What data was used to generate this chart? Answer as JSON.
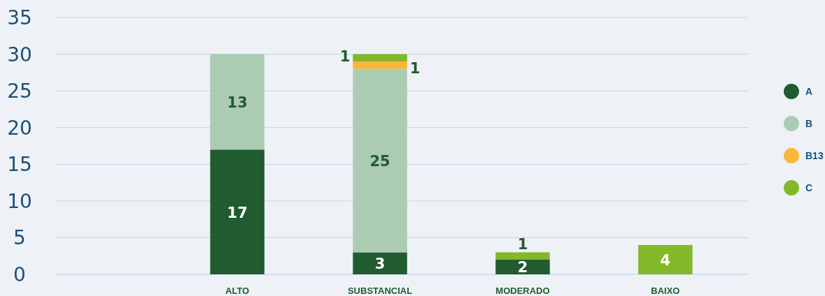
{
  "chart_data": {
    "type": "bar",
    "stacked": true,
    "categories": [
      "ALTO",
      "SUBSTANCIAL",
      "MODERADO",
      "BAIXO"
    ],
    "series": [
      {
        "name": "A",
        "color": "#215b30",
        "values": [
          17,
          3,
          2,
          null
        ]
      },
      {
        "name": "B",
        "color": "#accbb3",
        "values": [
          13,
          25,
          null,
          null
        ]
      },
      {
        "name": "B13",
        "color": "#f8b73a",
        "values": [
          null,
          1,
          null,
          null
        ]
      },
      {
        "name": "C",
        "color": "#83b828",
        "values": [
          null,
          1,
          1,
          4
        ]
      }
    ],
    "ylim": [
      0,
      35
    ],
    "yticks": [
      0,
      5,
      10,
      15,
      20,
      25,
      30,
      35
    ],
    "grid": "y",
    "legend": "right",
    "data_labels": true
  }
}
